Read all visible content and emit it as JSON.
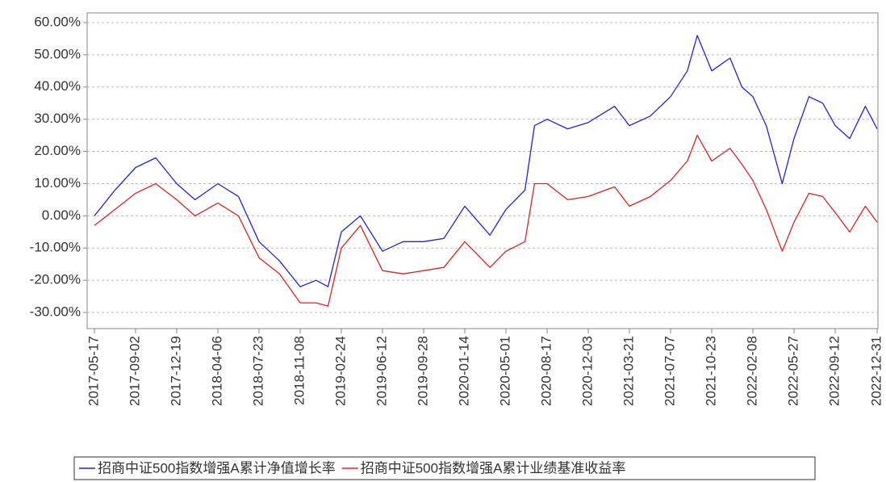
{
  "chart_data": {
    "type": "line",
    "x": [
      "2017-05-17",
      "2017-07-10",
      "2017-09-02",
      "2017-10-25",
      "2017-12-19",
      "2018-02-05",
      "2018-04-06",
      "2018-05-30",
      "2018-07-23",
      "2018-09-15",
      "2018-11-08",
      "2018-12-20",
      "2019-01-20",
      "2019-02-24",
      "2019-04-15",
      "2019-06-12",
      "2019-08-05",
      "2019-09-28",
      "2019-11-20",
      "2020-01-14",
      "2020-03-20",
      "2020-05-01",
      "2020-06-20",
      "2020-07-15",
      "2020-08-17",
      "2020-10-10",
      "2020-12-03",
      "2021-02-10",
      "2021-03-21",
      "2021-05-15",
      "2021-07-07",
      "2021-08-20",
      "2021-09-15",
      "2021-10-23",
      "2021-12-10",
      "2022-01-10",
      "2022-02-08",
      "2022-03-15",
      "2022-04-26",
      "2022-05-27",
      "2022-07-05",
      "2022-08-10",
      "2022-09-12",
      "2022-10-20",
      "2022-11-30",
      "2022-12-31"
    ],
    "series": [
      {
        "name": "招商中证500指数增强A累计净值增长率",
        "color": "#2222dd",
        "values": [
          0,
          8,
          15,
          18,
          10,
          5,
          10,
          6,
          -8,
          -14,
          -22,
          -20,
          -22,
          -5,
          0,
          -11,
          -8,
          -8,
          -7,
          3,
          -6,
          2,
          8,
          28,
          30,
          27,
          29,
          34,
          28,
          31,
          37,
          45,
          56,
          45,
          49,
          40,
          37,
          28,
          10,
          24,
          37,
          35,
          28,
          24,
          34,
          27
        ]
      },
      {
        "name": "招商中证500指数增强A累计业绩基准收益率",
        "color": "#dd2222",
        "values": [
          -3,
          2,
          7,
          10,
          5,
          0,
          4,
          0,
          -13,
          -18,
          -27,
          -27,
          -28,
          -10,
          -3,
          -17,
          -18,
          -17,
          -16,
          -8,
          -16,
          -11,
          -8,
          10,
          10,
          5,
          6,
          9,
          3,
          6,
          11,
          17,
          25,
          17,
          21,
          16,
          11,
          2,
          -11,
          -2,
          7,
          6,
          1,
          -5,
          3,
          -2
        ]
      }
    ],
    "xlim": [
      "2017-05-17",
      "2022-12-31"
    ],
    "xticks": [
      "2017-05-17",
      "2017-09-02",
      "2017-12-19",
      "2018-04-06",
      "2018-07-23",
      "2018-11-08",
      "2019-02-24",
      "2019-06-12",
      "2019-09-28",
      "2020-01-14",
      "2020-05-01",
      "2020-08-17",
      "2020-12-03",
      "2021-03-21",
      "2021-07-07",
      "2021-10-23",
      "2022-02-08",
      "2022-05-27",
      "2022-09-12",
      "2022-12-31"
    ],
    "ylim": [
      -35,
      63
    ],
    "yticks": [
      {
        "value": -30,
        "label": "-30.00%"
      },
      {
        "value": -20,
        "label": "-20.00%"
      },
      {
        "value": -10,
        "label": "-10.00%"
      },
      {
        "value": 0,
        "label": "0.00%"
      },
      {
        "value": 10,
        "label": "10.00%"
      },
      {
        "value": 20,
        "label": "20.00%"
      },
      {
        "value": 30,
        "label": "30.00%"
      },
      {
        "value": 40,
        "label": "40.00%"
      },
      {
        "value": 50,
        "label": "50.00%"
      },
      {
        "value": 60,
        "label": "60.00%"
      }
    ],
    "grid": true
  }
}
